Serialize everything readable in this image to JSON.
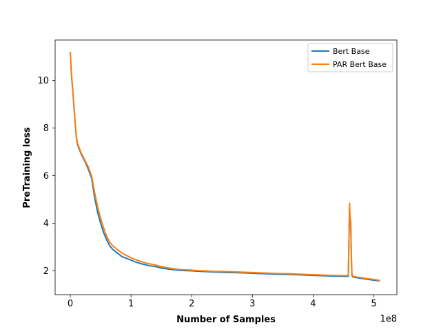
{
  "chart_data": {
    "type": "line",
    "title": "",
    "xlabel": "Number of Samples",
    "ylabel": "PreTraining loss",
    "x_offset_label": "1e8",
    "x_multiplier": 100000000,
    "xlim": [
      -0.25,
      5.38
    ],
    "ylim": [
      1.0,
      11.7
    ],
    "xticks": [
      0,
      1,
      2,
      3,
      4,
      5
    ],
    "xtick_labels": [
      "0",
      "1",
      "2",
      "3",
      "4",
      "5"
    ],
    "yticks": [
      2,
      4,
      6,
      8,
      10
    ],
    "ytick_labels": [
      "2",
      "4",
      "6",
      "8",
      "10"
    ],
    "grid": false,
    "legend_placement": "top-right",
    "x": [
      0.0,
      0.02,
      0.04,
      0.06,
      0.08,
      0.1,
      0.12,
      0.15,
      0.18,
      0.2,
      0.25,
      0.3,
      0.35,
      0.4,
      0.45,
      0.5,
      0.55,
      0.6,
      0.65,
      0.7,
      0.75,
      0.8,
      0.85,
      0.9,
      1.0,
      1.1,
      1.2,
      1.3,
      1.4,
      1.5,
      1.6,
      1.7,
      1.8,
      2.0,
      2.2,
      2.4,
      2.6,
      2.8,
      3.0,
      3.2,
      3.4,
      3.6,
      3.8,
      4.0,
      4.2,
      4.4,
      4.55,
      4.58,
      4.6,
      4.61,
      4.62,
      4.63,
      4.64,
      4.66,
      4.7,
      4.8,
      4.9,
      5.0,
      5.1
    ],
    "series": [
      {
        "name": "Bert Base",
        "color": "#1f77b4",
        "values": [
          11.2,
          10.2,
          9.6,
          8.9,
          8.2,
          7.6,
          7.3,
          7.1,
          6.9,
          6.8,
          6.55,
          6.25,
          5.9,
          5.1,
          4.45,
          4.0,
          3.6,
          3.3,
          3.05,
          2.9,
          2.8,
          2.7,
          2.6,
          2.55,
          2.45,
          2.35,
          2.28,
          2.22,
          2.18,
          2.12,
          2.08,
          2.05,
          2.02,
          2.0,
          1.97,
          1.95,
          1.93,
          1.92,
          1.9,
          1.88,
          1.86,
          1.85,
          1.83,
          1.81,
          1.79,
          1.78,
          1.77,
          1.78,
          4.7,
          4.0,
          3.9,
          2.5,
          1.8,
          1.74,
          1.72,
          1.68,
          1.64,
          1.61,
          1.58
        ]
      },
      {
        "name": "PAR Bert Base",
        "color": "#ff7f0e",
        "values": [
          11.2,
          10.25,
          9.65,
          8.95,
          8.25,
          7.65,
          7.35,
          7.15,
          6.95,
          6.85,
          6.6,
          6.35,
          6.0,
          5.3,
          4.7,
          4.2,
          3.8,
          3.45,
          3.2,
          3.05,
          2.95,
          2.85,
          2.75,
          2.68,
          2.55,
          2.45,
          2.36,
          2.3,
          2.25,
          2.18,
          2.13,
          2.09,
          2.06,
          2.03,
          2.0,
          1.98,
          1.97,
          1.95,
          1.93,
          1.91,
          1.89,
          1.88,
          1.86,
          1.84,
          1.82,
          1.81,
          1.8,
          1.82,
          4.85,
          4.2,
          4.1,
          2.7,
          1.85,
          1.77,
          1.75,
          1.71,
          1.67,
          1.64,
          1.6
        ]
      }
    ]
  }
}
